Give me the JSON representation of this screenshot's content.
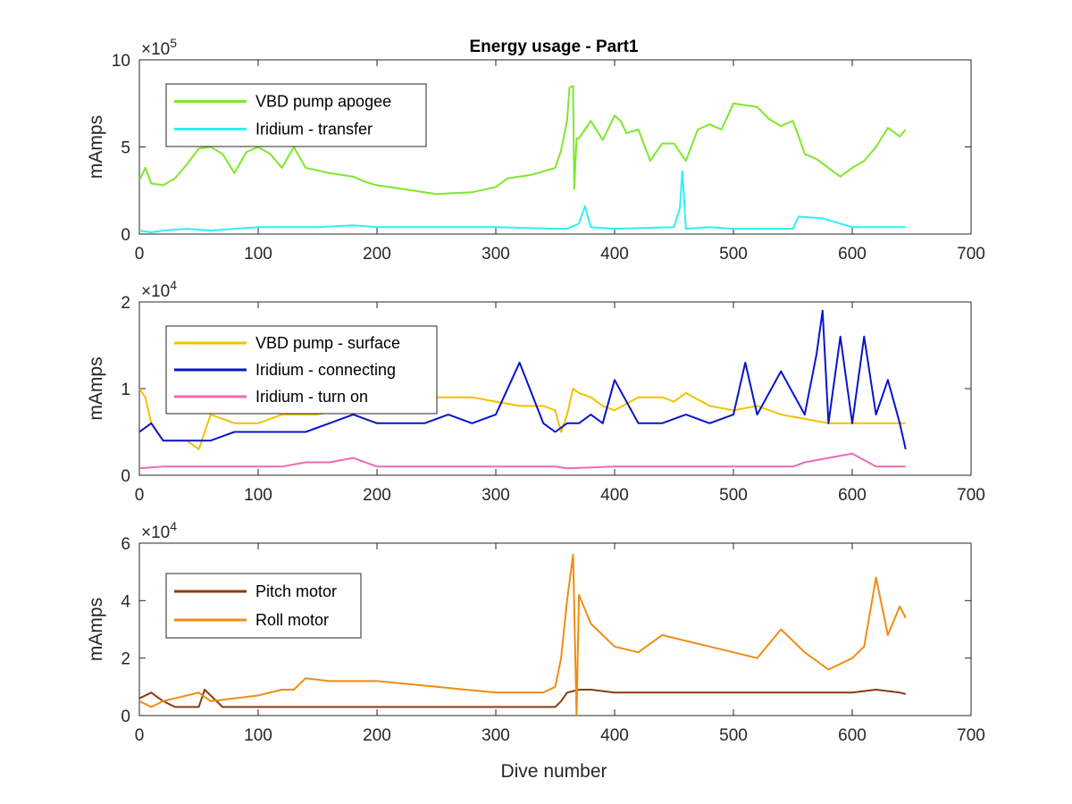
{
  "figure": {
    "title": "Energy usage - Part1",
    "xlabel": "Dive number"
  },
  "chart_data": [
    {
      "type": "line",
      "title": "Energy usage - Part1",
      "ylabel": "mAmps",
      "exponent": "5",
      "xlim": [
        0,
        700
      ],
      "ylim": [
        0,
        10
      ],
      "xticks": [
        0,
        100,
        200,
        300,
        400,
        500,
        600,
        700
      ],
      "yticks": [
        0,
        5,
        10
      ],
      "legend": "top-left",
      "series": [
        {
          "name": "VBD pump apogee",
          "color": "#7ee82d",
          "x": [
            0,
            5,
            10,
            20,
            30,
            40,
            50,
            60,
            70,
            80,
            90,
            100,
            110,
            120,
            130,
            140,
            160,
            180,
            190,
            200,
            220,
            250,
            280,
            300,
            310,
            330,
            350,
            355,
            360,
            362,
            365,
            366,
            368,
            370,
            375,
            380,
            390,
            400,
            405,
            410,
            420,
            430,
            440,
            450,
            460,
            470,
            480,
            490,
            500,
            510,
            520,
            530,
            540,
            550,
            555,
            560,
            570,
            580,
            590,
            600,
            610,
            620,
            630,
            640,
            645
          ],
          "y": [
            3.1,
            3.8,
            2.9,
            2.8,
            3.2,
            4.0,
            4.9,
            5.0,
            4.6,
            3.5,
            4.7,
            5.0,
            4.6,
            3.8,
            5.0,
            3.8,
            3.5,
            3.3,
            3.0,
            2.8,
            2.6,
            2.3,
            2.4,
            2.7,
            3.2,
            3.4,
            3.8,
            4.8,
            6.5,
            8.4,
            8.5,
            2.6,
            5.5,
            5.5,
            6.0,
            6.5,
            5.4,
            6.8,
            6.5,
            5.8,
            6.0,
            4.2,
            5.2,
            5.2,
            4.2,
            6.0,
            6.3,
            6.0,
            7.5,
            7.4,
            7.3,
            6.6,
            6.2,
            6.5,
            5.6,
            4.6,
            4.3,
            3.8,
            3.3,
            3.8,
            4.2,
            5.0,
            6.1,
            5.6,
            6.0
          ]
        },
        {
          "name": "Iridium - transfer",
          "color": "#2ff0f0",
          "x": [
            0,
            10,
            20,
            40,
            60,
            80,
            100,
            150,
            180,
            200,
            250,
            300,
            350,
            360,
            370,
            375,
            380,
            400,
            450,
            455,
            457,
            460,
            480,
            500,
            550,
            555,
            575,
            600,
            645
          ],
          "y": [
            0.2,
            0.1,
            0.2,
            0.3,
            0.2,
            0.3,
            0.4,
            0.4,
            0.5,
            0.4,
            0.4,
            0.4,
            0.3,
            0.3,
            0.6,
            1.6,
            0.4,
            0.3,
            0.4,
            1.5,
            3.6,
            0.3,
            0.4,
            0.3,
            0.3,
            1.0,
            0.9,
            0.4,
            0.4
          ]
        }
      ]
    },
    {
      "type": "line",
      "ylabel": "mAmps",
      "exponent": "4",
      "xlim": [
        0,
        700
      ],
      "ylim": [
        0,
        2
      ],
      "xticks": [
        0,
        100,
        200,
        300,
        400,
        500,
        600,
        700
      ],
      "yticks": [
        0,
        1,
        2
      ],
      "legend": "top-left",
      "series": [
        {
          "name": "VBD pump - surface",
          "color": "#f2c200",
          "x": [
            0,
            5,
            10,
            20,
            40,
            50,
            60,
            80,
            100,
            120,
            150,
            180,
            200,
            220,
            250,
            280,
            300,
            320,
            340,
            350,
            355,
            360,
            365,
            370,
            380,
            390,
            400,
            420,
            440,
            450,
            460,
            480,
            500,
            520,
            540,
            560,
            580,
            600,
            620,
            640,
            645
          ],
          "y": [
            1.0,
            0.9,
            0.6,
            0.4,
            0.4,
            0.3,
            0.7,
            0.6,
            0.6,
            0.7,
            0.7,
            0.8,
            0.85,
            0.85,
            0.9,
            0.9,
            0.85,
            0.8,
            0.8,
            0.75,
            0.5,
            0.7,
            1.0,
            0.95,
            0.9,
            0.8,
            0.75,
            0.9,
            0.9,
            0.85,
            0.95,
            0.8,
            0.75,
            0.8,
            0.7,
            0.65,
            0.6,
            0.6,
            0.6,
            0.6,
            0.6
          ]
        },
        {
          "name": "Iridium - connecting",
          "color": "#0a14c8",
          "x": [
            0,
            10,
            20,
            40,
            60,
            80,
            100,
            120,
            140,
            160,
            180,
            200,
            220,
            240,
            260,
            280,
            300,
            320,
            340,
            350,
            360,
            370,
            380,
            390,
            400,
            420,
            440,
            460,
            480,
            500,
            510,
            520,
            540,
            560,
            570,
            575,
            580,
            590,
            600,
            610,
            620,
            630,
            640,
            645
          ],
          "y": [
            0.5,
            0.6,
            0.4,
            0.4,
            0.4,
            0.5,
            0.5,
            0.5,
            0.5,
            0.6,
            0.7,
            0.6,
            0.6,
            0.6,
            0.7,
            0.6,
            0.7,
            1.3,
            0.6,
            0.5,
            0.6,
            0.6,
            0.7,
            0.6,
            1.1,
            0.6,
            0.6,
            0.7,
            0.6,
            0.7,
            1.3,
            0.7,
            1.2,
            0.7,
            1.4,
            1.9,
            0.6,
            1.6,
            0.6,
            1.6,
            0.7,
            1.1,
            0.6,
            0.3
          ]
        },
        {
          "name": "Iridium - turn on",
          "color": "#ef6ab4",
          "x": [
            0,
            20,
            40,
            60,
            80,
            100,
            120,
            140,
            160,
            180,
            200,
            250,
            300,
            350,
            360,
            400,
            450,
            500,
            550,
            560,
            580,
            600,
            620,
            640,
            645
          ],
          "y": [
            0.08,
            0.1,
            0.1,
            0.1,
            0.1,
            0.1,
            0.1,
            0.15,
            0.15,
            0.2,
            0.1,
            0.1,
            0.1,
            0.1,
            0.08,
            0.1,
            0.1,
            0.1,
            0.1,
            0.15,
            0.2,
            0.25,
            0.1,
            0.1,
            0.1
          ]
        }
      ]
    },
    {
      "type": "line",
      "ylabel": "mAmps",
      "exponent": "4",
      "xlabel": "Dive number",
      "xlim": [
        0,
        700
      ],
      "ylim": [
        0,
        6
      ],
      "xticks": [
        0,
        100,
        200,
        300,
        400,
        500,
        600,
        700
      ],
      "yticks": [
        0,
        2,
        4,
        6
      ],
      "legend": "top-left",
      "series": [
        {
          "name": "Pitch motor",
          "color": "#8b3a0f",
          "x": [
            0,
            10,
            20,
            30,
            40,
            50,
            55,
            60,
            70,
            100,
            150,
            200,
            250,
            300,
            350,
            355,
            360,
            370,
            380,
            400,
            450,
            500,
            550,
            600,
            620,
            640,
            645
          ],
          "y": [
            0.6,
            0.8,
            0.5,
            0.3,
            0.3,
            0.3,
            0.9,
            0.7,
            0.3,
            0.3,
            0.3,
            0.3,
            0.3,
            0.3,
            0.3,
            0.5,
            0.8,
            0.9,
            0.9,
            0.8,
            0.8,
            0.8,
            0.8,
            0.8,
            0.9,
            0.8,
            0.75
          ]
        },
        {
          "name": "Roll motor",
          "color": "#f08c12",
          "x": [
            0,
            10,
            20,
            30,
            50,
            60,
            80,
            100,
            120,
            130,
            140,
            160,
            200,
            250,
            300,
            340,
            350,
            355,
            360,
            365,
            368,
            370,
            380,
            400,
            420,
            440,
            460,
            480,
            500,
            520,
            540,
            560,
            580,
            600,
            610,
            620,
            630,
            640,
            645
          ],
          "y": [
            0.5,
            0.3,
            0.5,
            0.6,
            0.8,
            0.5,
            0.6,
            0.7,
            0.9,
            0.9,
            1.3,
            1.2,
            1.2,
            1.0,
            0.8,
            0.8,
            1.0,
            2.0,
            4.0,
            5.6,
            0.0,
            4.2,
            3.2,
            2.4,
            2.2,
            2.8,
            2.6,
            2.4,
            2.2,
            2.0,
            3.0,
            2.2,
            1.6,
            2.0,
            2.4,
            4.8,
            2.8,
            3.8,
            3.4
          ]
        }
      ]
    }
  ]
}
